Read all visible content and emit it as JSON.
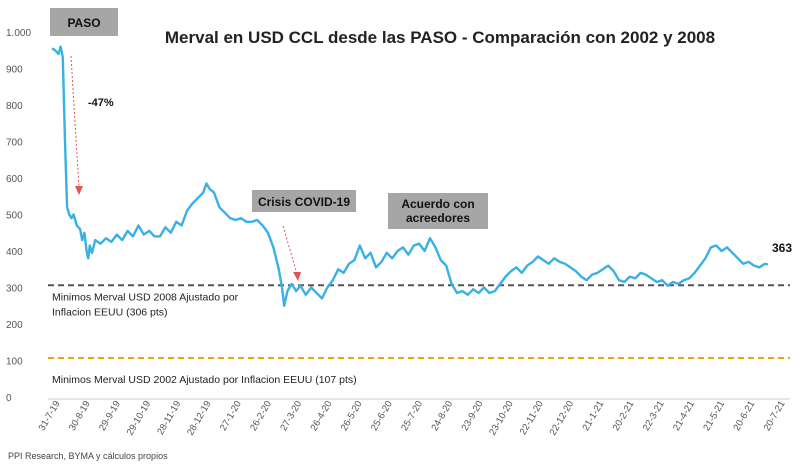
{
  "chart_data": {
    "type": "line",
    "title": "Merval en USD CCL desde las PASO - Comparación con 2002 y 2008",
    "ylim": [
      0,
      1000
    ],
    "yticks": [
      0,
      100,
      200,
      300,
      400,
      500,
      600,
      700,
      800,
      900,
      1000
    ],
    "ytick_labels": [
      "0",
      "100",
      "200",
      "300",
      "400",
      "500",
      "600",
      "700",
      "800",
      "900",
      "1.000"
    ],
    "xtick_labels": [
      "31-7-19",
      "30-8-19",
      "29-9-19",
      "29-10-19",
      "28-11-19",
      "28-12-19",
      "27-1-20",
      "26-2-20",
      "27-3-20",
      "26-4-20",
      "26-5-20",
      "25-6-20",
      "25-7-20",
      "24-8-20",
      "23-9-20",
      "23-10-20",
      "22-11-20",
      "22-12-20",
      "21-1-21",
      "20-2-21",
      "22-3-21",
      "21-4-21",
      "21-5-21",
      "20-6-21",
      "20-7-21"
    ],
    "series": [
      {
        "name": "Merval USD CCL",
        "color": "#3ab1e6",
        "points": [
          [
            0,
            955
          ],
          [
            0.3,
            950
          ],
          [
            0.6,
            940
          ],
          [
            0.8,
            960
          ],
          [
            1.0,
            930
          ],
          [
            1.2,
            700
          ],
          [
            1.4,
            520
          ],
          [
            1.6,
            500
          ],
          [
            1.8,
            490
          ],
          [
            2.0,
            500
          ],
          [
            2.3,
            470
          ],
          [
            2.6,
            460
          ],
          [
            2.8,
            430
          ],
          [
            3.0,
            450
          ],
          [
            3.2,
            400
          ],
          [
            3.35,
            380
          ],
          [
            3.5,
            415
          ],
          [
            3.7,
            395
          ],
          [
            4.0,
            430
          ],
          [
            4.5,
            420
          ],
          [
            5.0,
            435
          ],
          [
            5.5,
            425
          ],
          [
            6.0,
            445
          ],
          [
            6.5,
            430
          ],
          [
            7.0,
            455
          ],
          [
            7.5,
            440
          ],
          [
            8.0,
            470
          ],
          [
            8.5,
            445
          ],
          [
            9.0,
            455
          ],
          [
            9.5,
            440
          ],
          [
            10.0,
            440
          ],
          [
            10.5,
            465
          ],
          [
            11.0,
            450
          ],
          [
            11.5,
            480
          ],
          [
            12.0,
            470
          ],
          [
            12.5,
            510
          ],
          [
            13.0,
            530
          ],
          [
            13.5,
            545
          ],
          [
            14.0,
            560
          ],
          [
            14.3,
            585
          ],
          [
            14.6,
            570
          ],
          [
            15.0,
            560
          ],
          [
            15.5,
            520
          ],
          [
            16.0,
            505
          ],
          [
            16.5,
            490
          ],
          [
            17.0,
            485
          ],
          [
            17.5,
            490
          ],
          [
            18.0,
            480
          ],
          [
            18.5,
            480
          ],
          [
            19.0,
            485
          ],
          [
            19.5,
            470
          ],
          [
            20.0,
            450
          ],
          [
            20.5,
            410
          ],
          [
            21.0,
            350
          ],
          [
            21.3,
            300
          ],
          [
            21.5,
            250
          ],
          [
            21.8,
            290
          ],
          [
            22.2,
            310
          ],
          [
            22.6,
            290
          ],
          [
            23.0,
            305
          ],
          [
            23.5,
            280
          ],
          [
            24.0,
            300
          ],
          [
            24.5,
            285
          ],
          [
            25.0,
            270
          ],
          [
            25.5,
            300
          ],
          [
            26.0,
            320
          ],
          [
            26.5,
            350
          ],
          [
            27.0,
            340
          ],
          [
            27.5,
            365
          ],
          [
            28.0,
            375
          ],
          [
            28.5,
            415
          ],
          [
            29.0,
            380
          ],
          [
            29.5,
            395
          ],
          [
            30.0,
            355
          ],
          [
            30.5,
            370
          ],
          [
            31.0,
            395
          ],
          [
            31.5,
            380
          ],
          [
            32.0,
            400
          ],
          [
            32.5,
            410
          ],
          [
            33.0,
            390
          ],
          [
            33.5,
            415
          ],
          [
            34.0,
            420
          ],
          [
            34.5,
            400
          ],
          [
            35.0,
            435
          ],
          [
            35.5,
            410
          ],
          [
            36.0,
            375
          ],
          [
            36.5,
            360
          ],
          [
            37.0,
            310
          ],
          [
            37.5,
            285
          ],
          [
            38.0,
            290
          ],
          [
            38.5,
            280
          ],
          [
            39.0,
            295
          ],
          [
            39.5,
            285
          ],
          [
            40.0,
            300
          ],
          [
            40.5,
            285
          ],
          [
            41.0,
            290
          ],
          [
            41.5,
            310
          ],
          [
            42.0,
            330
          ],
          [
            42.5,
            345
          ],
          [
            43.0,
            355
          ],
          [
            43.5,
            340
          ],
          [
            44.0,
            360
          ],
          [
            44.5,
            370
          ],
          [
            45.0,
            385
          ],
          [
            45.5,
            375
          ],
          [
            46.0,
            365
          ],
          [
            46.5,
            380
          ],
          [
            47.0,
            370
          ],
          [
            47.5,
            365
          ],
          [
            48.0,
            355
          ],
          [
            48.5,
            345
          ],
          [
            49.0,
            330
          ],
          [
            49.5,
            320
          ],
          [
            50.0,
            335
          ],
          [
            50.5,
            340
          ],
          [
            51.0,
            350
          ],
          [
            51.5,
            360
          ],
          [
            52.0,
            345
          ],
          [
            52.5,
            320
          ],
          [
            53.0,
            315
          ],
          [
            53.5,
            330
          ],
          [
            54.0,
            325
          ],
          [
            54.5,
            340
          ],
          [
            55.0,
            335
          ],
          [
            55.5,
            325
          ],
          [
            56.0,
            315
          ],
          [
            56.5,
            320
          ],
          [
            57.0,
            305
          ],
          [
            57.5,
            315
          ],
          [
            58.0,
            310
          ],
          [
            58.5,
            320
          ],
          [
            59.0,
            325
          ],
          [
            59.5,
            340
          ],
          [
            60.0,
            360
          ],
          [
            60.5,
            380
          ],
          [
            61.0,
            410
          ],
          [
            61.5,
            415
          ],
          [
            62.0,
            400
          ],
          [
            62.5,
            410
          ],
          [
            63.0,
            395
          ],
          [
            63.5,
            380
          ],
          [
            64.0,
            365
          ],
          [
            64.5,
            370
          ],
          [
            65.0,
            360
          ],
          [
            65.5,
            355
          ],
          [
            66.0,
            365
          ],
          [
            66.3,
            363
          ]
        ]
      }
    ],
    "reference_lines": [
      {
        "value": 306,
        "label": "Minimos Merval USD 2008 Ajustado por\nInflacion EEUU (306 pts)",
        "color": "#555555",
        "style": "dashed"
      },
      {
        "value": 107,
        "label": "Minimos Merval USD 2002 Ajustado por Inflacion EEUU (107 pts)",
        "color": "#e8a80c",
        "style": "dashed"
      }
    ],
    "annotations": [
      {
        "text": "PASO",
        "type": "box"
      },
      {
        "text": "-47%",
        "type": "label"
      },
      {
        "text": "Crisis COVID-19",
        "type": "box"
      },
      {
        "text": "Acuerdo con\nacreedores",
        "type": "box"
      },
      {
        "text": "363",
        "type": "end-label"
      }
    ],
    "source": "PPI Research, BYMA y cálculos propios"
  }
}
